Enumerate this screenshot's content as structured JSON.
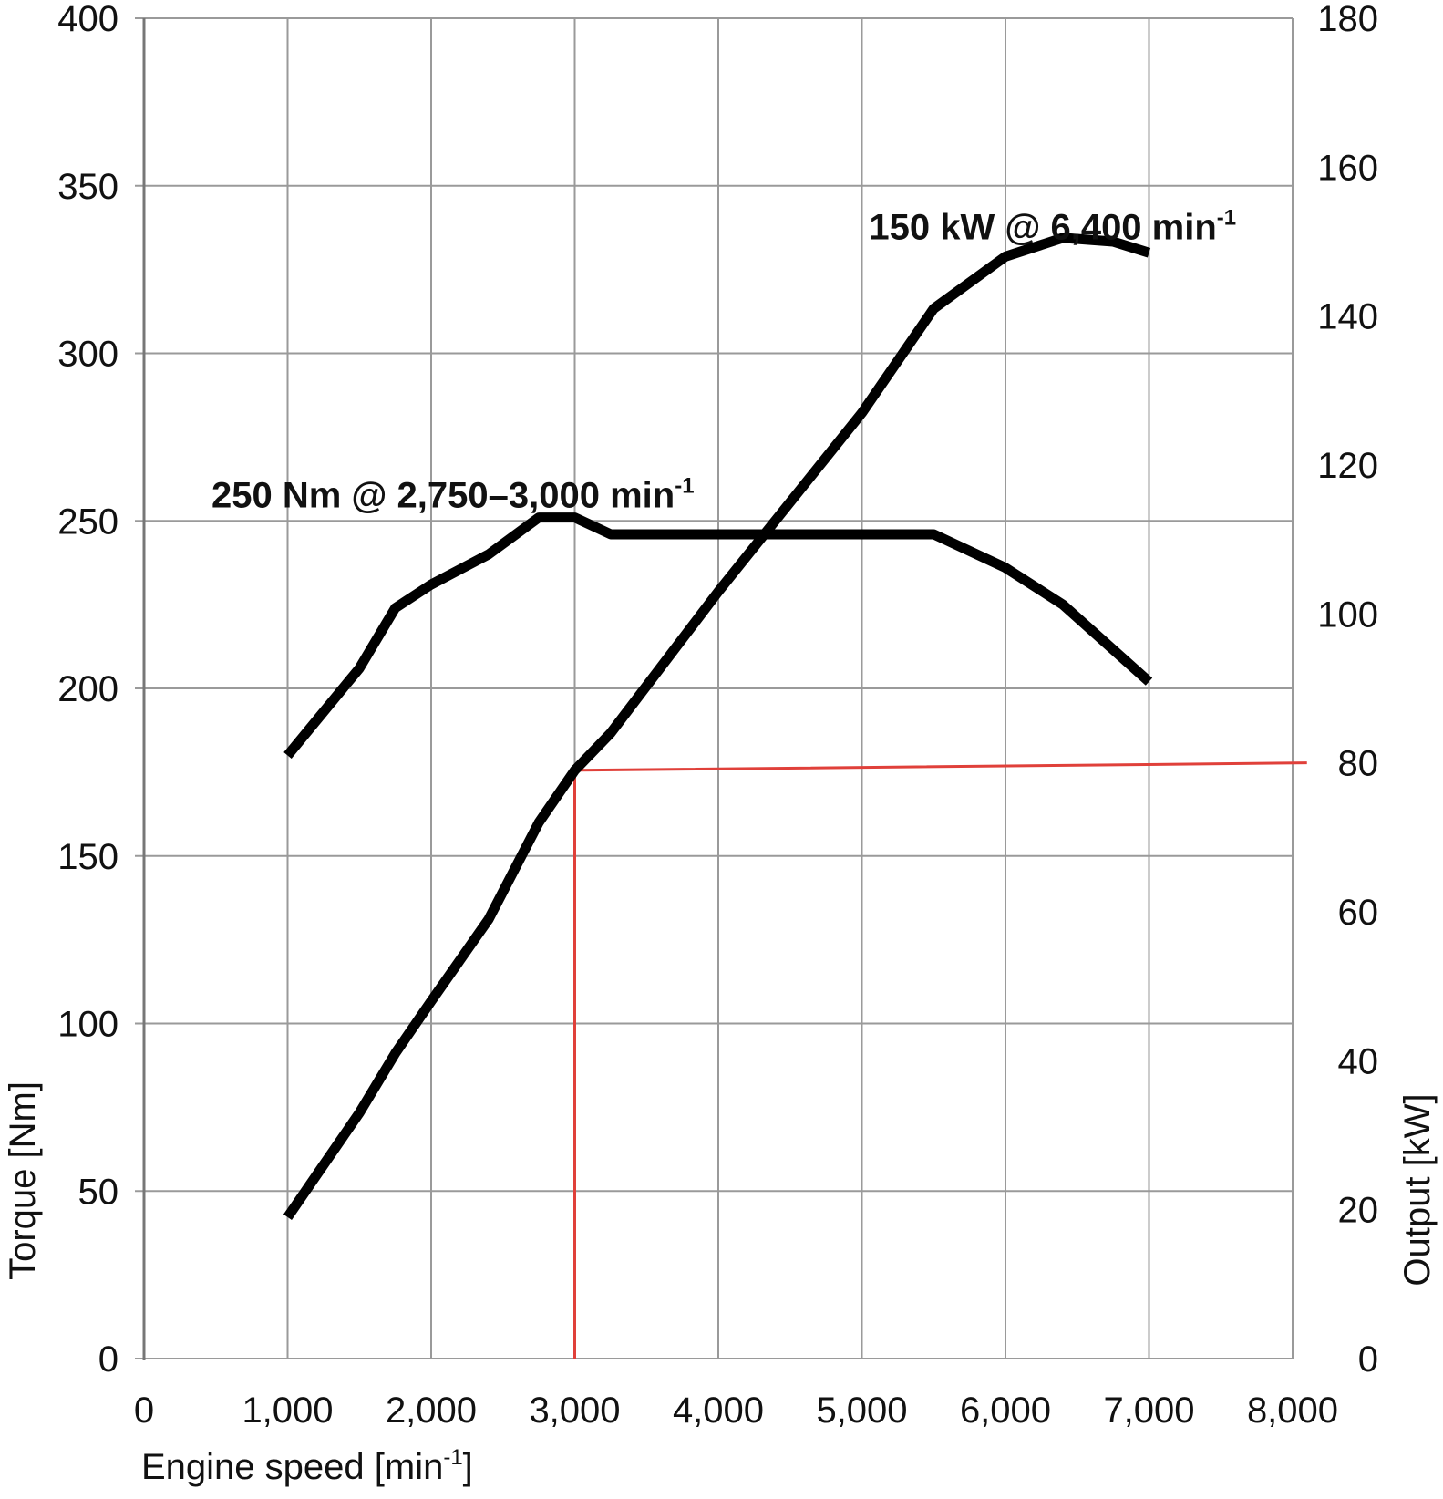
{
  "chart_data": {
    "type": "line",
    "title": "",
    "xlabel": "Engine speed [min",
    "xlabel_sup": "-1",
    "xlabel_close": "]",
    "ylabel_left": "Torque [Nm]",
    "ylabel_right": "Output [kW]",
    "xlim": [
      0,
      8000
    ],
    "ylim_left": [
      0,
      400
    ],
    "ylim_right": [
      0,
      180
    ],
    "grid": true,
    "x_ticks": [
      0,
      1000,
      2000,
      3000,
      4000,
      5000,
      6000,
      7000,
      8000
    ],
    "x_tick_labels": [
      "0",
      "1,000",
      "2,000",
      "3,000",
      "4,000",
      "5,000",
      "6,000",
      "7,000",
      "8,000"
    ],
    "y_left_ticks": [
      0,
      50,
      100,
      150,
      200,
      250,
      300,
      350,
      400
    ],
    "y_left_tick_labels": [
      "0",
      "50",
      "100",
      "150",
      "200",
      "250",
      "300",
      "350",
      "400"
    ],
    "y_right_ticks": [
      0,
      20,
      40,
      60,
      80,
      100,
      120,
      140,
      160,
      180
    ],
    "y_right_tick_labels": [
      "0",
      "20",
      "40",
      "60",
      "80",
      "100",
      "120",
      "140",
      "160",
      "180"
    ],
    "series": [
      {
        "name": "Torque",
        "axis": "left",
        "color": "#000000",
        "x": [
          1000,
          1250,
          1500,
          1750,
          2000,
          2400,
          2750,
          3000,
          3250,
          4000,
          5000,
          5500,
          6000,
          6400,
          7000
        ],
        "y": [
          180,
          193,
          206,
          224,
          231,
          240,
          251,
          251,
          246,
          246,
          246,
          246,
          236,
          225,
          202
        ]
      },
      {
        "name": "Output",
        "axis": "right",
        "color": "#000000",
        "x": [
          1000,
          1250,
          1500,
          1750,
          2000,
          2400,
          2750,
          3000,
          3250,
          4000,
          5000,
          5500,
          6000,
          6400,
          6750,
          7000
        ],
        "y": [
          19,
          26,
          33,
          41,
          48,
          59,
          72,
          79,
          84,
          103,
          127,
          141,
          148,
          150.5,
          150,
          148.5
        ]
      }
    ],
    "reference_lines": [
      {
        "name": "Reference 80 kW",
        "color": "#e0403a",
        "x": [
          3000,
          3000,
          8100
        ],
        "y_right": [
          0,
          79,
          80
        ]
      }
    ],
    "annotations": [
      {
        "name": "peak-power",
        "main": "150 kW @ 6,400 min",
        "sup": "-1",
        "x": 5050,
        "y_left": 334
      },
      {
        "name": "peak-torque",
        "main": "250 Nm @ 2,750–3,000 min",
        "sup": "-1",
        "x": 470,
        "y_left": 254
      }
    ]
  }
}
